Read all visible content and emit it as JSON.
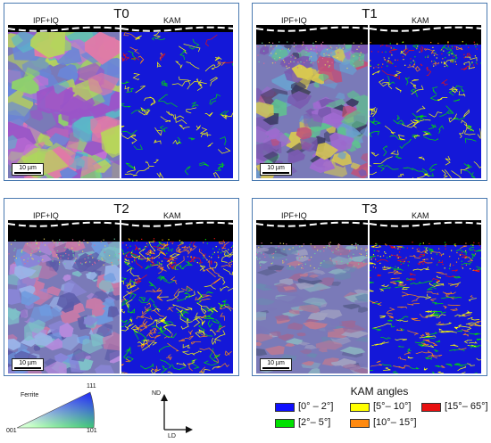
{
  "panels": [
    {
      "title": "T0",
      "ipf_label": "IPF+IQ",
      "kam_label": "KAM",
      "scale": "10 µm"
    },
    {
      "title": "T1",
      "ipf_label": "IPF+IQ",
      "kam_label": "KAM",
      "scale": "10 µm"
    },
    {
      "title": "T2",
      "ipf_label": "IPF+IQ",
      "kam_label": "KAM",
      "scale": "10 µm"
    },
    {
      "title": "T3",
      "ipf_label": "IPF+IQ",
      "kam_label": "KAM",
      "scale": "10 µm"
    }
  ],
  "ipf_key": {
    "phase": "Ferrite",
    "top": "111",
    "left": "001",
    "right": "101"
  },
  "axes": {
    "vertical": "ND",
    "horizontal": "LD"
  },
  "kam_legend": {
    "title": "KAM angles",
    "items": [
      {
        "label": "[0° – 2°]",
        "color": "#1010ff"
      },
      {
        "label": "[5°– 10°]",
        "color": "#ffff00"
      },
      {
        "label": "[15°– 65°]",
        "color": "#e81010"
      },
      {
        "label": "[2°– 5°]",
        "color": "#00e000"
      },
      {
        "label": "[10°– 15°]",
        "color": "#ff8a10"
      }
    ]
  }
}
